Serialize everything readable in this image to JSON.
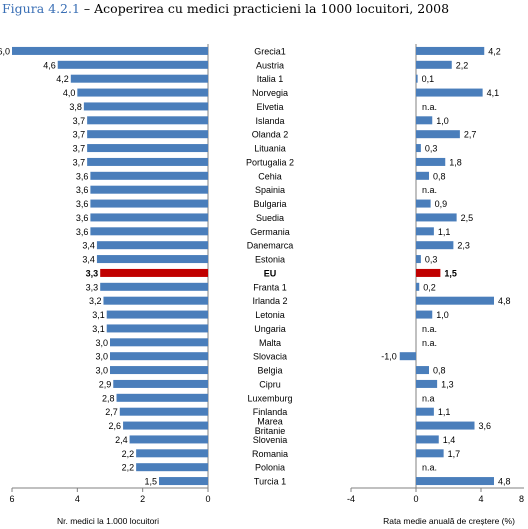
{
  "figure": {
    "number": "Figura 4.2.1",
    "title": "– Acoperirea cu medici practicieni la 1000 locuitori, 2008"
  },
  "colors": {
    "bar": "#4a7ebb",
    "highlight": "#c00000",
    "axis": "#808080",
    "text": "#000000"
  },
  "chart_data": [
    {
      "type": "bar",
      "orientation": "horizontal",
      "xlabel": "Nr. medici la 1.000 locuitori",
      "xlim": [
        0,
        6
      ],
      "x_reversed": true,
      "xticks": [
        "6",
        "4",
        "2",
        "0"
      ],
      "categories": [
        "Grecia1",
        "Austria",
        "Italia 1",
        "Norvegia",
        "Elvetia",
        "Islanda",
        "Olanda 2",
        "Lituania",
        "Portugalia 2",
        "Cehia",
        "Spainia",
        "Bulgaria",
        "Suedia",
        "Germania",
        "Danemarca",
        "Estonia",
        "EU",
        "Franta 1",
        "Irlanda 2",
        "Letonia",
        "Ungaria",
        "Malta",
        "Slovacia",
        "Belgia",
        "Cipru",
        "Luxemburg",
        "Finlanda",
        "Marea Britanie",
        "Slovenia",
        "Romania",
        "Polonia",
        "Turcia 1"
      ],
      "category_lines": [
        [
          "Grecia1"
        ],
        [
          "Austria"
        ],
        [
          "Italia 1"
        ],
        [
          "Norvegia"
        ],
        [
          "Elvetia"
        ],
        [
          "Islanda"
        ],
        [
          "Olanda 2"
        ],
        [
          "Lituania"
        ],
        [
          "Portugalia 2"
        ],
        [
          "Cehia"
        ],
        [
          "Spainia"
        ],
        [
          "Bulgaria"
        ],
        [
          "Suedia"
        ],
        [
          "Germania"
        ],
        [
          "Danemarca"
        ],
        [
          "Estonia"
        ],
        [
          "EU"
        ],
        [
          "Franta 1"
        ],
        [
          "Irlanda 2"
        ],
        [
          "Letonia"
        ],
        [
          "Ungaria"
        ],
        [
          "Malta"
        ],
        [
          "Slovacia"
        ],
        [
          "Belgia"
        ],
        [
          "Cipru"
        ],
        [
          "Luxemburg"
        ],
        [
          "Finlanda"
        ],
        [
          "Marea",
          "Britanie"
        ],
        [
          "Slovenia"
        ],
        [
          "Romania"
        ],
        [
          "Polonia"
        ],
        [
          "Turcia 1"
        ]
      ],
      "values": [
        6.0,
        4.6,
        4.2,
        4.0,
        3.8,
        3.7,
        3.7,
        3.7,
        3.7,
        3.6,
        3.6,
        3.6,
        3.6,
        3.6,
        3.4,
        3.4,
        3.3,
        3.3,
        3.2,
        3.1,
        3.1,
        3.0,
        3.0,
        3.0,
        2.9,
        2.8,
        2.7,
        2.6,
        2.4,
        2.2,
        2.2,
        1.5
      ],
      "labels": [
        "6,0",
        "4,6",
        "4,2",
        "4,0",
        "3,8",
        "3,7",
        "3,7",
        "3,7",
        "3,7",
        "3,6",
        "3,6",
        "3,6",
        "3,6",
        "3,6",
        "3,4",
        "3,4",
        "3,3",
        "3,3",
        "3,2",
        "3,1",
        "3,1",
        "3,0",
        "3,0",
        "3,0",
        "2,9",
        "2,8",
        "2,7",
        "2,6",
        "2,4",
        "2,2",
        "2,2",
        "1,5"
      ],
      "highlight_category": "EU"
    },
    {
      "type": "bar",
      "orientation": "horizontal",
      "xlabel": "Rata medie anuală de creștere (%)",
      "xlim": [
        -4,
        6
      ],
      "xticks": [
        "-4",
        "0",
        "4",
        "8"
      ],
      "values": [
        4.2,
        2.2,
        0.1,
        4.1,
        null,
        1.0,
        2.7,
        0.3,
        1.8,
        0.8,
        null,
        0.9,
        2.5,
        1.1,
        2.3,
        0.3,
        1.5,
        0.2,
        4.8,
        1.0,
        null,
        null,
        -1.0,
        0.8,
        1.3,
        null,
        1.1,
        3.6,
        1.4,
        1.7,
        null,
        4.8
      ],
      "labels": [
        "4,2",
        "2,2",
        "0,1",
        "4,1",
        "n.a.",
        "1,0",
        "2,7",
        "0,3",
        "1,8",
        "0,8",
        "n.a.",
        "0,9",
        "2,5",
        "1,1",
        "2,3",
        "0,3",
        "1,5",
        "0,2",
        "4,8",
        "1,0",
        "n.a.",
        "n.a.",
        "-1,0",
        "0,8",
        "1,3",
        "n.a",
        "1,1",
        "3,6",
        "1,4",
        "1,7",
        "n.a.",
        "4,8"
      ],
      "highlight_category": "EU"
    }
  ]
}
